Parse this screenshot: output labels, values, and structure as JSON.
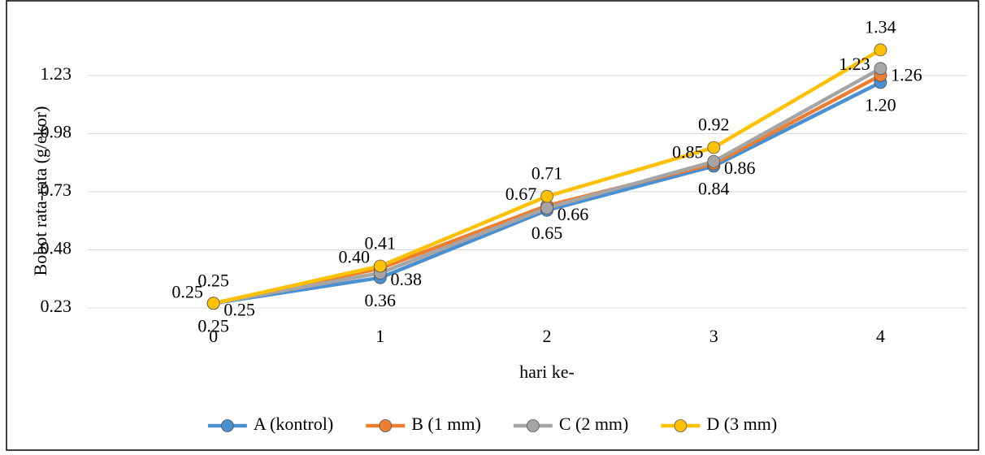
{
  "chart_data": {
    "type": "line",
    "y_label": "Bobot rata-rata (g/ekor)",
    "x_label": "hari ke-",
    "categories": [
      "0",
      "1",
      "2",
      "3",
      "4"
    ],
    "series": [
      {
        "name": "A (kontrol)",
        "color": "#4a8fd0",
        "values": [
          0.25,
          0.36,
          0.65,
          0.84,
          1.2
        ],
        "value_labels": [
          "0.25",
          "0.36",
          "0.65",
          "0.84",
          "1.20"
        ]
      },
      {
        "name": "B (1 mm)",
        "color": "#ed7d31",
        "values": [
          0.25,
          0.4,
          0.67,
          0.85,
          1.23
        ],
        "value_labels": [
          "0.25",
          "0.40",
          "0.67",
          "0.85",
          "1.23"
        ]
      },
      {
        "name": "C (2 mm)",
        "color": "#a5a5a5",
        "values": [
          0.25,
          0.38,
          0.66,
          0.86,
          1.26
        ],
        "value_labels": [
          "0.25",
          "0.38",
          "0.66",
          "0.86",
          "1.26"
        ]
      },
      {
        "name": "D (3 mm)",
        "color": "#ffc000",
        "values": [
          0.25,
          0.41,
          0.71,
          0.92,
          1.34
        ],
        "value_labels": [
          "0.25",
          "0.41",
          "0.71",
          "0.92",
          "1.34"
        ]
      }
    ],
    "ylim": [
      0.23,
      1.38
    ],
    "yticks": [
      0.23,
      0.48,
      0.73,
      0.98,
      1.23
    ],
    "grid": true,
    "legend": "bottom"
  }
}
